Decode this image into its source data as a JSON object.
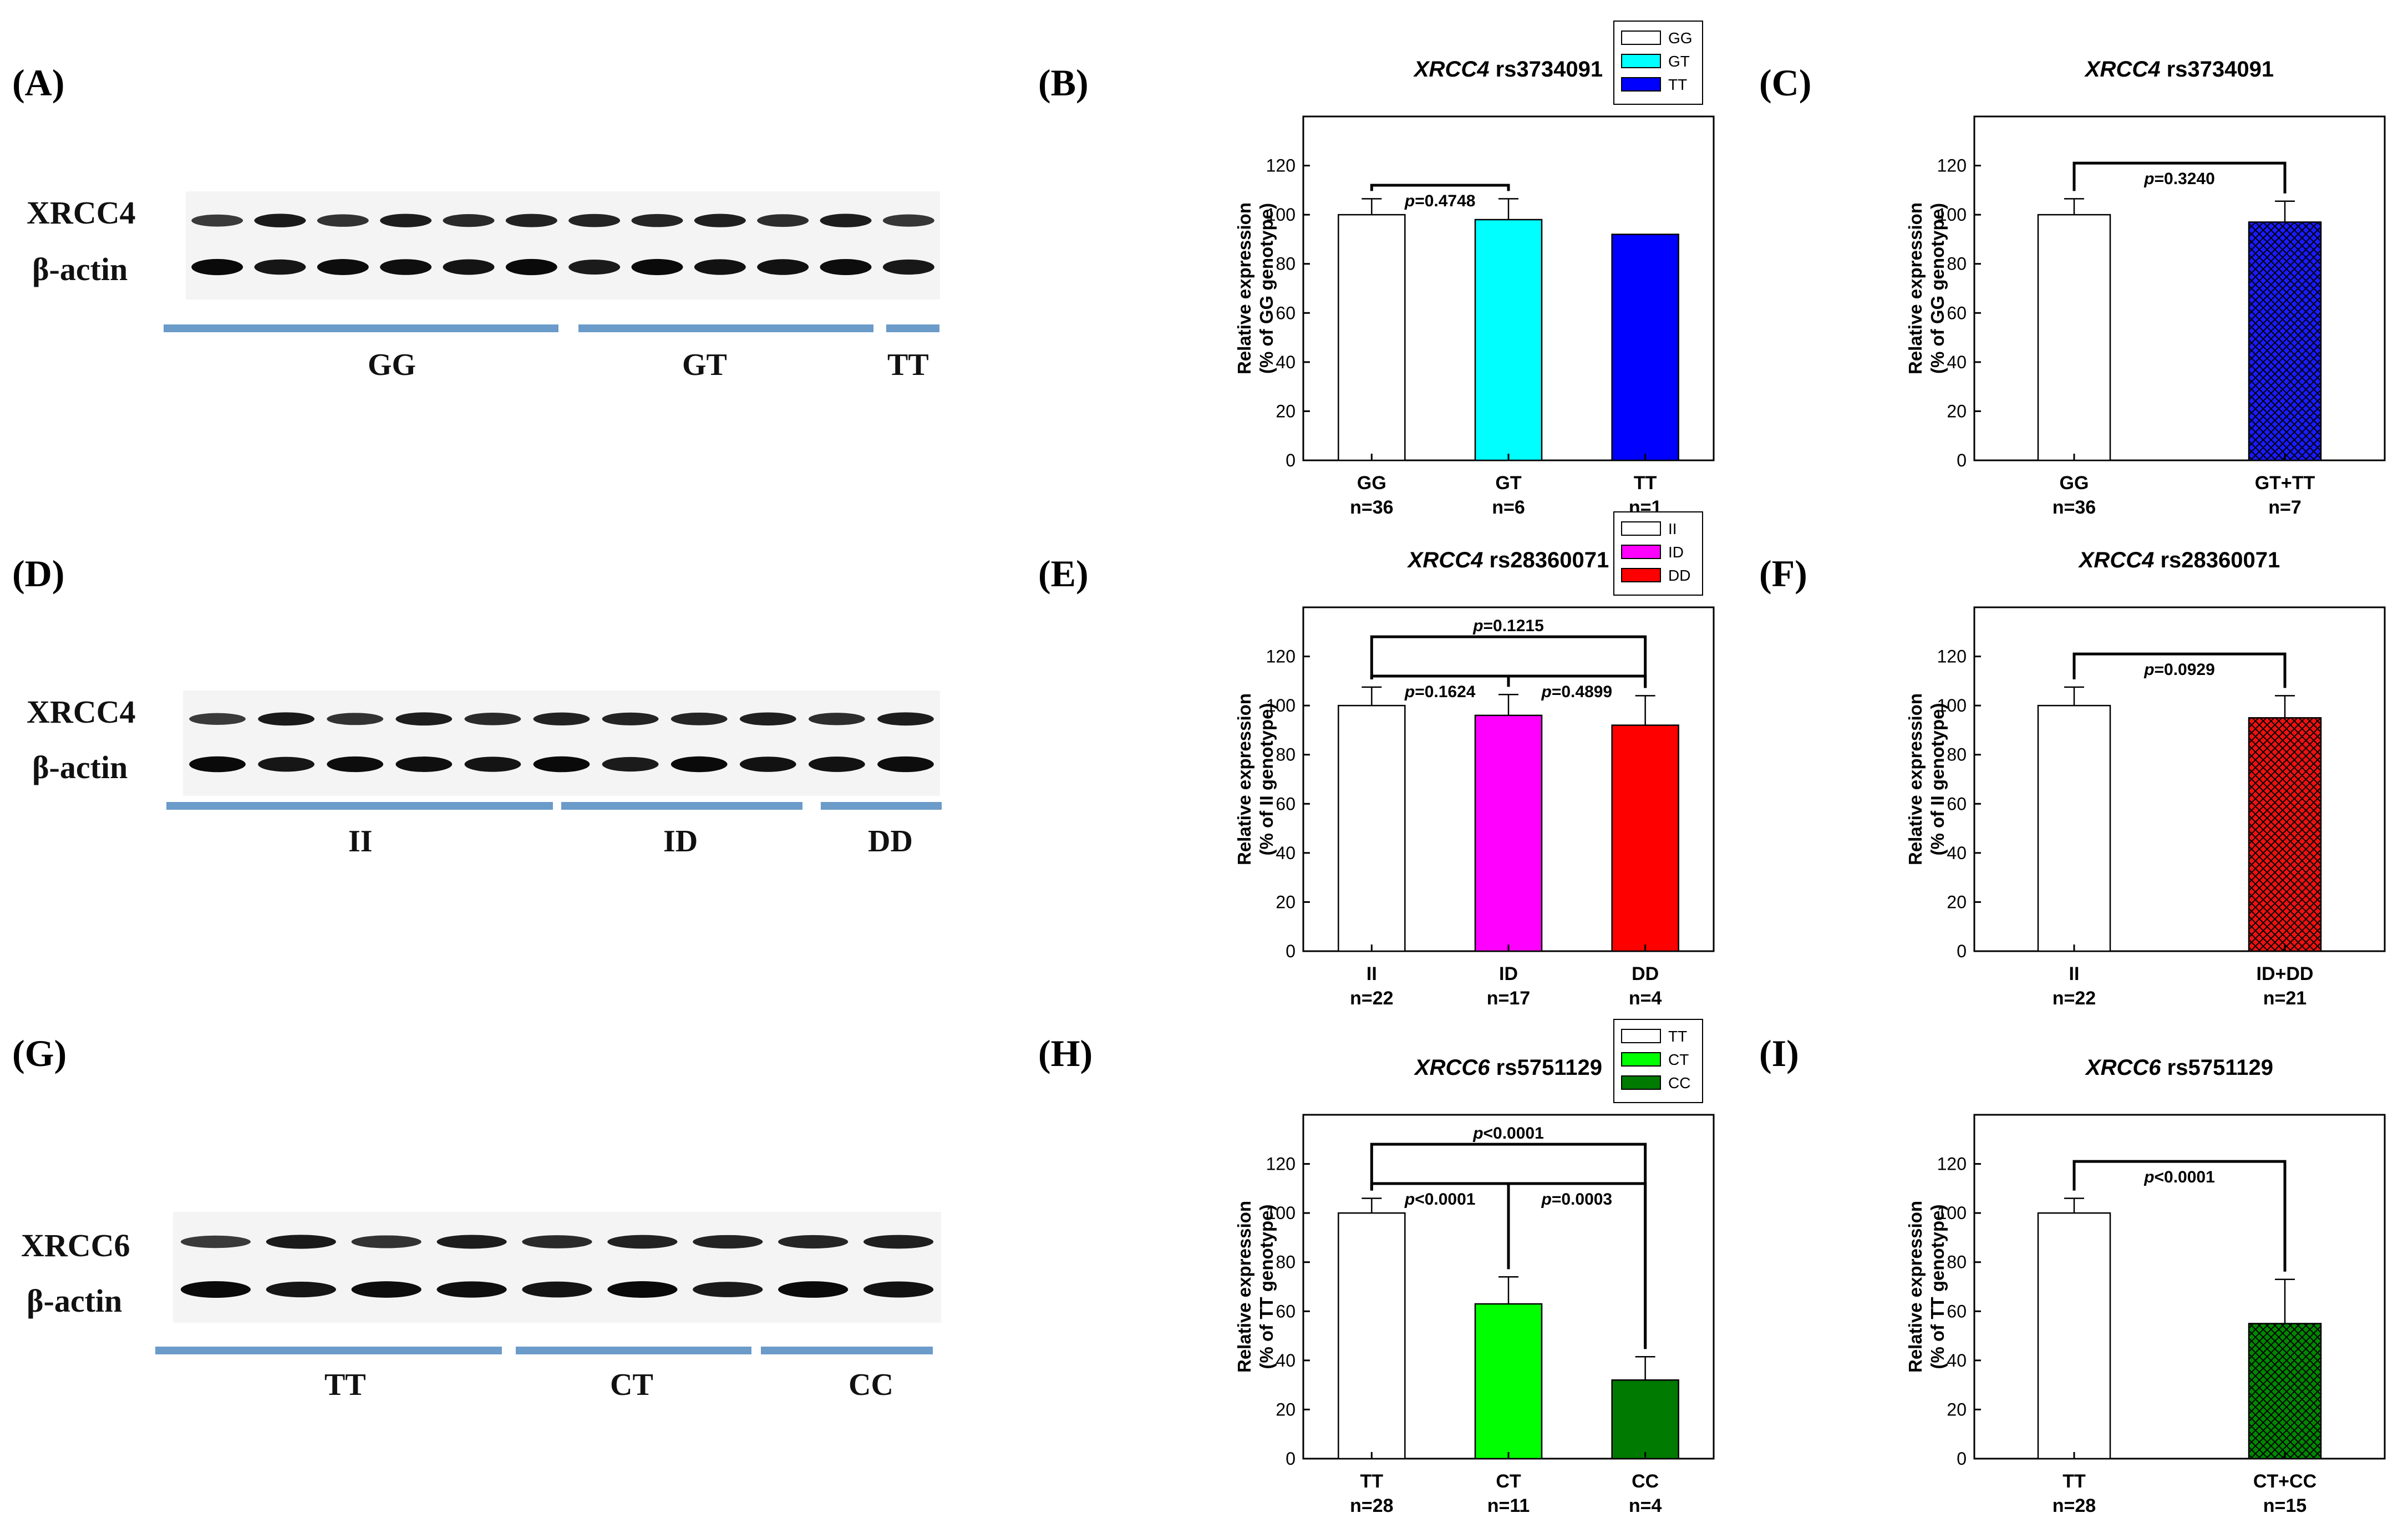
{
  "panel_labels": [
    "(A)",
    "(B)",
    "(C)",
    "(D)",
    "(E)",
    "(F)",
    "(G)",
    "(H)",
    "(I)"
  ],
  "blots": [
    {
      "protein": "XRCC4",
      "loading": "β-actin",
      "groups": [
        "GG",
        "GT",
        "TT"
      ],
      "lanes": 12
    },
    {
      "protein": "XRCC4",
      "loading": "β-actin",
      "groups": [
        "II",
        "ID",
        "DD"
      ],
      "lanes": 11
    },
    {
      "protein": "XRCC6",
      "loading": "β-actin",
      "groups": [
        "TT",
        "CT",
        "CC"
      ],
      "lanes": 9
    }
  ],
  "chart_data": [
    {
      "type": "bar",
      "gene": "XRCC4",
      "snp": "rs3734091",
      "ylabel": [
        "Relative expression",
        "(% of GG genotype)"
      ],
      "ylim": [
        0,
        140
      ],
      "yticks": [
        0,
        20,
        40,
        60,
        80,
        100,
        120
      ],
      "categories": [
        "GG",
        "GT",
        "TT"
      ],
      "n": [
        "n=36",
        "n=6",
        "n=1"
      ],
      "values": [
        100,
        98,
        92
      ],
      "errors": [
        6.5,
        8.5,
        0
      ],
      "colors": [
        "#ffffff",
        "#00ffff",
        "#0000ff"
      ],
      "hatch": [
        false,
        false,
        false
      ],
      "legend": [
        "GG",
        "GT",
        "TT"
      ],
      "brackets": [
        {
          "from": 0,
          "to": 1,
          "p": "=0.4748"
        }
      ]
    },
    {
      "type": "bar",
      "gene": "XRCC4",
      "snp": "rs3734091",
      "ylabel": [
        "Relative expression",
        "(% of GG genotype)"
      ],
      "ylim": [
        0,
        140
      ],
      "yticks": [
        0,
        20,
        40,
        60,
        80,
        100,
        120
      ],
      "categories": [
        "GG",
        "GT+TT"
      ],
      "n": [
        "n=36",
        "n=7"
      ],
      "values": [
        100,
        97
      ],
      "errors": [
        6.5,
        8.5
      ],
      "colors": [
        "#ffffff",
        "#1a1aff"
      ],
      "hatch": [
        false,
        true
      ],
      "legend": [],
      "brackets": [
        {
          "from": 0,
          "to": 1,
          "p": "=0.3240"
        }
      ]
    },
    {
      "type": "bar",
      "gene": "XRCC4",
      "snp": "rs28360071",
      "ylabel": [
        "Relative expression",
        "(% of II genotype)"
      ],
      "ylim": [
        0,
        140
      ],
      "yticks": [
        0,
        20,
        40,
        60,
        80,
        100,
        120
      ],
      "categories": [
        "II",
        "ID",
        "DD"
      ],
      "n": [
        "n=22",
        "n=17",
        "n=4"
      ],
      "values": [
        100,
        96,
        92
      ],
      "errors": [
        7.5,
        8.5,
        12
      ],
      "colors": [
        "#ffffff",
        "#ff00ff",
        "#ff0000"
      ],
      "hatch": [
        false,
        false,
        false
      ],
      "legend": [
        "II",
        "ID",
        "DD"
      ],
      "brackets": [
        {
          "from": 0,
          "to": 1,
          "p": "=0.1624"
        },
        {
          "from": 1,
          "to": 2,
          "p": "=0.4899"
        },
        {
          "from": 0,
          "to": 2,
          "p": "=0.1215"
        }
      ]
    },
    {
      "type": "bar",
      "gene": "XRCC4",
      "snp": "rs28360071",
      "ylabel": [
        "Relative expression",
        "(% of II genotype)"
      ],
      "ylim": [
        0,
        140
      ],
      "yticks": [
        0,
        20,
        40,
        60,
        80,
        100,
        120
      ],
      "categories": [
        "II",
        "ID+DD"
      ],
      "n": [
        "n=22",
        "n=21"
      ],
      "values": [
        100,
        95
      ],
      "errors": [
        7.5,
        9
      ],
      "colors": [
        "#ffffff",
        "#ee1111"
      ],
      "hatch": [
        false,
        true
      ],
      "legend": [],
      "brackets": [
        {
          "from": 0,
          "to": 1,
          "p": "=0.0929"
        }
      ]
    },
    {
      "type": "bar",
      "gene": "XRCC6",
      "snp": "rs5751129",
      "ylabel": [
        "Relative expression",
        "(% of TT genotype)"
      ],
      "ylim": [
        0,
        140
      ],
      "yticks": [
        0,
        20,
        40,
        60,
        80,
        100,
        120
      ],
      "categories": [
        "TT",
        "CT",
        "CC"
      ],
      "n": [
        "n=28",
        "n=11",
        "n=4"
      ],
      "values": [
        100,
        63,
        32
      ],
      "errors": [
        6,
        11,
        9.5
      ],
      "colors": [
        "#ffffff",
        "#00ff00",
        "#007a00"
      ],
      "hatch": [
        false,
        false,
        false
      ],
      "legend": [
        "TT",
        "CT",
        "CC"
      ],
      "brackets": [
        {
          "from": 0,
          "to": 1,
          "p": "<0.0001"
        },
        {
          "from": 1,
          "to": 2,
          "p": "=0.0003"
        },
        {
          "from": 0,
          "to": 2,
          "p": "<0.0001"
        }
      ]
    },
    {
      "type": "bar",
      "gene": "XRCC6",
      "snp": "rs5751129",
      "ylabel": [
        "Relative expression",
        "(% of TT genotype)"
      ],
      "ylim": [
        0,
        140
      ],
      "yticks": [
        0,
        20,
        40,
        60,
        80,
        100,
        120
      ],
      "categories": [
        "TT",
        "CT+CC"
      ],
      "n": [
        "n=28",
        "n=15"
      ],
      "values": [
        100,
        55
      ],
      "errors": [
        6,
        18
      ],
      "colors": [
        "#ffffff",
        "#008800"
      ],
      "hatch": [
        false,
        true
      ],
      "legend": [],
      "brackets": [
        {
          "from": 0,
          "to": 1,
          "p": "<0.0001"
        }
      ]
    }
  ]
}
